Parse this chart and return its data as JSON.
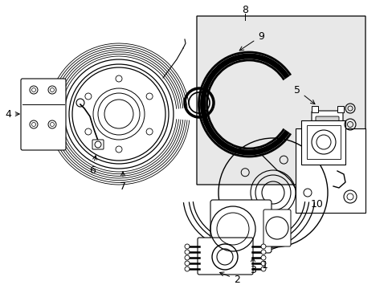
{
  "bg_color": "#ffffff",
  "fig_width": 4.89,
  "fig_height": 3.6,
  "dpi": 100,
  "line_color": "#000000",
  "shade_color": "#e8e8e8",
  "label_fontsize": 9
}
